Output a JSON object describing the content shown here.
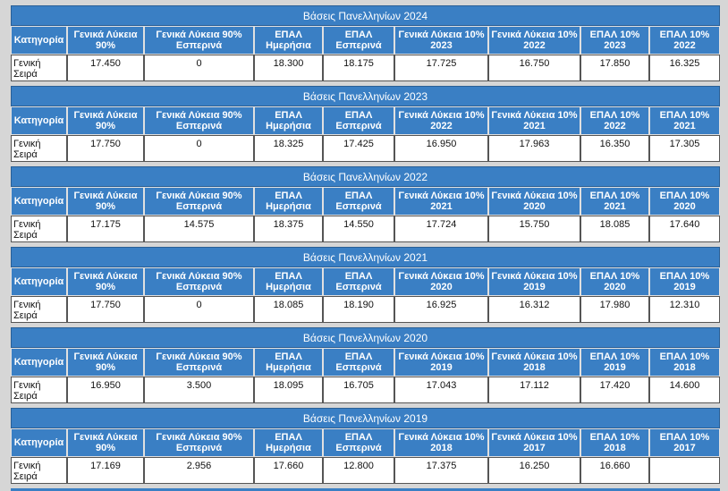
{
  "blocks": [
    {
      "title": "Βάσεις Πανελληνίων 2024",
      "headers": [
        "Κατηγορία",
        "Γενικά Λύκεια 90%",
        "Γενικά Λύκεια 90% Εσπερινά",
        "ΕΠΑΛ Ημερήσια",
        "ΕΠΑΛ Εσπερινά",
        "Γενικά Λύκεια 10% 2023",
        "Γενικά Λύκεια 10% 2022",
        "ΕΠΑΛ 10% 2023",
        "ΕΠΑΛ 10% 2022"
      ],
      "row": [
        "Γενική Σειρά",
        "17.450",
        "0",
        "18.300",
        "18.175",
        "17.725",
        "16.750",
        "17.850",
        "16.325"
      ]
    },
    {
      "title": "Βάσεις Πανελληνίων 2023",
      "headers": [
        "Κατηγορία",
        "Γενικά Λύκεια 90%",
        "Γενικά Λύκεια 90% Εσπερινά",
        "ΕΠΑΛ Ημερήσια",
        "ΕΠΑΛ Εσπερινά",
        "Γενικά Λύκεια 10% 2022",
        "Γενικά Λύκεια 10% 2021",
        "ΕΠΑΛ 10% 2022",
        "ΕΠΑΛ 10% 2021"
      ],
      "row": [
        "Γενική Σειρά",
        "17.750",
        "0",
        "18.325",
        "17.425",
        "16.950",
        "17.963",
        "16.350",
        "17.305"
      ]
    },
    {
      "title": "Βάσεις Πανελληνίων 2022",
      "headers": [
        "Κατηγορία",
        "Γενικά Λύκεια 90%",
        "Γενικά Λύκεια 90% Εσπερινά",
        "ΕΠΑΛ Ημερήσια",
        "ΕΠΑΛ Εσπερινά",
        "Γενικά Λύκεια 10% 2021",
        "Γενικά Λύκεια 10% 2020",
        "ΕΠΑΛ 10% 2021",
        "ΕΠΑΛ 10% 2020"
      ],
      "row": [
        "Γενική Σειρά",
        "17.175",
        "14.575",
        "18.375",
        "14.550",
        "17.724",
        "15.750",
        "18.085",
        "17.640"
      ]
    },
    {
      "title": "Βάσεις Πανελληνίων 2021",
      "headers": [
        "Κατηγορία",
        "Γενικά Λύκεια 90%",
        "Γενικά Λύκεια 90% Εσπερινά",
        "ΕΠΑΛ Ημερήσια",
        "ΕΠΑΛ Εσπερινά",
        "Γενικά Λύκεια 10% 2020",
        "Γενικά Λύκεια 10% 2019",
        "ΕΠΑΛ 10% 2020",
        "ΕΠΑΛ 10% 2019"
      ],
      "row": [
        "Γενική Σειρά",
        "17.750",
        "0",
        "18.085",
        "18.190",
        "16.925",
        "16.312",
        "17.980",
        "12.310"
      ]
    },
    {
      "title": "Βάσεις Πανελληνίων 2020",
      "headers": [
        "Κατηγορία",
        "Γενικά Λύκεια 90%",
        "Γενικά Λύκεια 90% Εσπερινά",
        "ΕΠΑΛ Ημερήσια",
        "ΕΠΑΛ Εσπερινά",
        "Γενικά Λύκεια 10% 2019",
        "Γενικά Λύκεια 10% 2018",
        "ΕΠΑΛ 10% 2019",
        "ΕΠΑΛ 10% 2018"
      ],
      "row": [
        "Γενική Σειρά",
        "16.950",
        "3.500",
        "18.095",
        "16.705",
        "17.043",
        "17.112",
        "17.420",
        "14.600"
      ]
    },
    {
      "title": "Βάσεις Πανελληνίων 2019",
      "headers": [
        "Κατηγορία",
        "Γενικά Λύκεια 90%",
        "Γενικά Λύκεια 90% Εσπερινά",
        "ΕΠΑΛ Ημερήσια",
        "ΕΠΑΛ Εσπερινά",
        "Γενικά Λύκεια 10% 2018",
        "Γενικά Λύκεια 10% 2017",
        "ΕΠΑΛ 10% 2018",
        "ΕΠΑΛ 10% 2017"
      ],
      "row": [
        "Γενική Σειρά",
        "17.169",
        "2.956",
        "17.660",
        "12.800",
        "17.375",
        "16.250",
        "16.660",
        null
      ]
    }
  ]
}
